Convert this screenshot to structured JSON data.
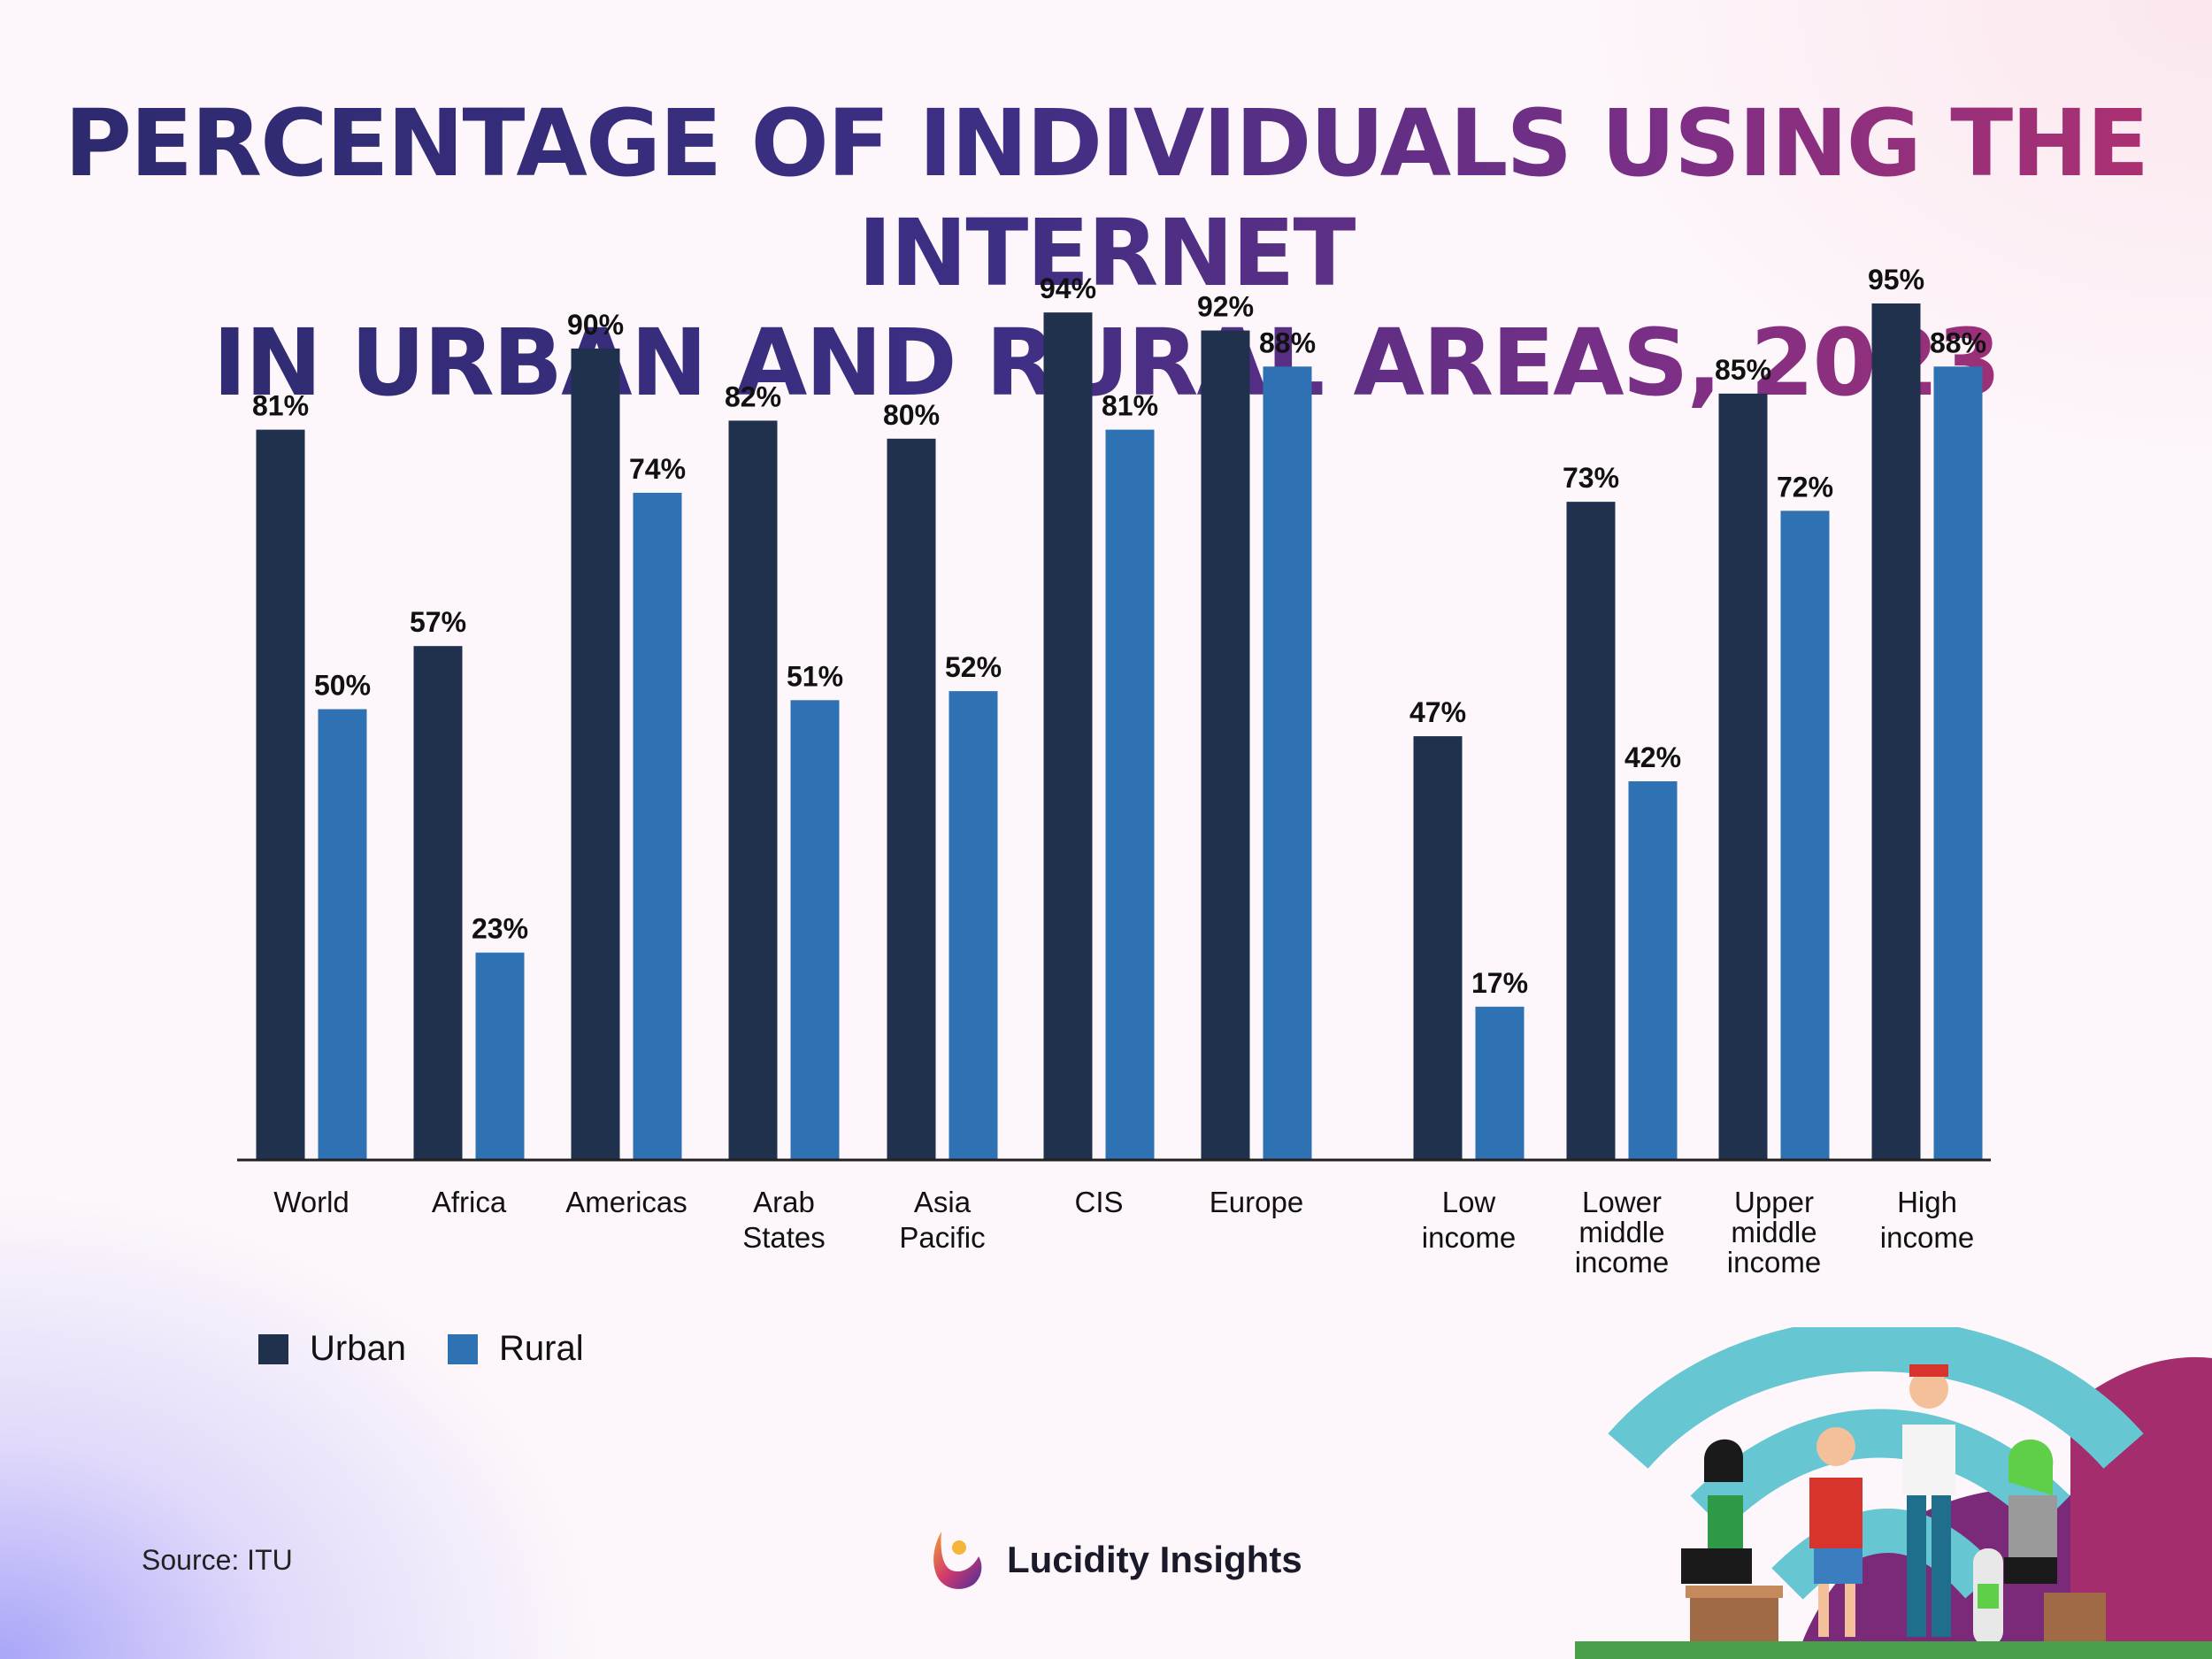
{
  "title": {
    "line1": "PERCENTAGE OF INDIVIDUALS USING THE INTERNET",
    "line2": "IN URBAN AND RURAL AREAS, 2023"
  },
  "legend": {
    "urban": "Urban",
    "rural": "Rural"
  },
  "source": "Source: ITU",
  "brand": {
    "name": "Lucidity Insights"
  },
  "colors": {
    "urban": "#1f314c",
    "rural": "#2f72b3",
    "axis": "#222222"
  },
  "chart_data": {
    "type": "bar",
    "title": "PERCENTAGE OF INDIVIDUALS USING THE INTERNET IN URBAN AND RURAL AREAS, 2023",
    "categories": [
      [
        "World"
      ],
      [
        "Africa"
      ],
      [
        "Americas"
      ],
      [
        "Arab",
        "States"
      ],
      [
        "Asia",
        "Pacific"
      ],
      [
        "CIS"
      ],
      [
        "Europe"
      ],
      [
        "Low",
        "income"
      ],
      [
        "Lower",
        "middle",
        "income"
      ],
      [
        "Upper",
        "middle",
        "income"
      ],
      [
        "High",
        "income"
      ]
    ],
    "series": [
      {
        "name": "Urban",
        "values": [
          81,
          57,
          90,
          82,
          80,
          94,
          92,
          47,
          73,
          85,
          95
        ]
      },
      {
        "name": "Rural",
        "values": [
          50,
          23,
          74,
          51,
          52,
          81,
          88,
          17,
          42,
          72,
          88
        ]
      }
    ],
    "value_suffix": "%",
    "ylim": [
      0,
      100
    ],
    "grid": false,
    "legend_position": "bottom-left",
    "groups": [
      "regions",
      "income groups"
    ]
  }
}
